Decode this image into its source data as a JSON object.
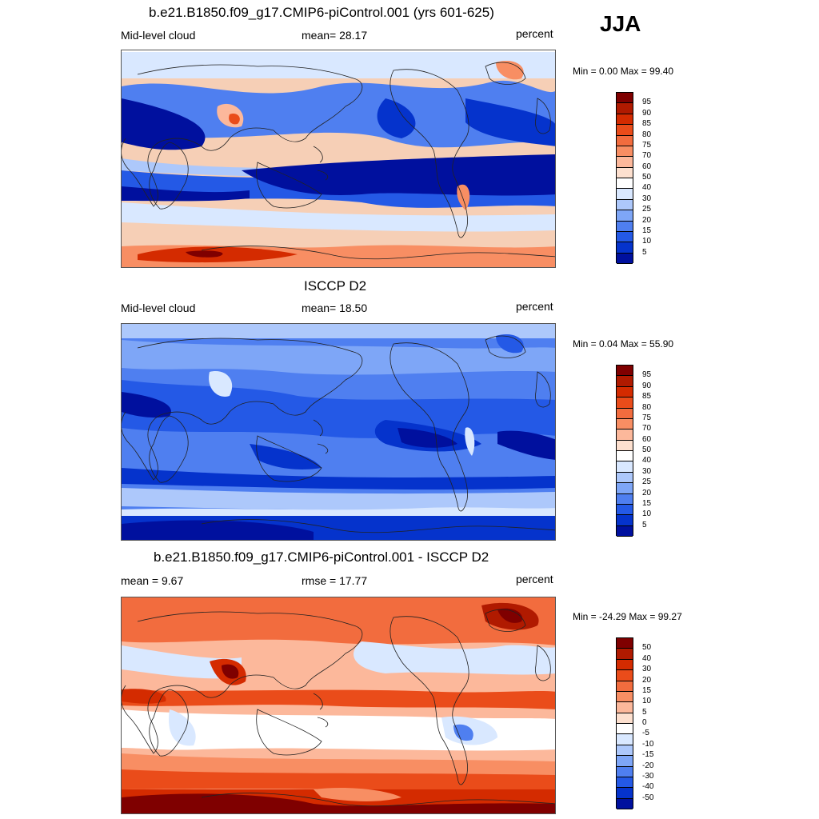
{
  "season": "JJA",
  "panels": [
    {
      "title": "b.e21.B1850.f09_g17.CMIP6-piControl.001 (yrs 601-625)",
      "left_label": "Mid-level cloud",
      "center_label": "mean=  28.17",
      "right_label": "percent",
      "minmax": "Min =   0.00 Max =  99.40",
      "colorbar": {
        "levels": [
          "95",
          "90",
          "85",
          "80",
          "75",
          "70",
          "60",
          "50",
          "40",
          "30",
          "25",
          "20",
          "15",
          "10",
          "5"
        ],
        "colors": [
          "#7f0000",
          "#b01a00",
          "#d42b00",
          "#ea4c1a",
          "#f26c3e",
          "#f88e63",
          "#fcb89b",
          "#fde0cf",
          "#ffffff",
          "#d9e8ff",
          "#adc8fb",
          "#7ea6f7",
          "#4f7ff0",
          "#2459e6",
          "#0533cc",
          "#00109e"
        ]
      }
    },
    {
      "title": "ISCCP D2",
      "left_label": "Mid-level cloud",
      "center_label": "mean=  18.50",
      "right_label": "percent",
      "minmax": "Min =   0.04 Max =  55.90",
      "colorbar": {
        "levels": [
          "95",
          "90",
          "85",
          "80",
          "75",
          "70",
          "60",
          "50",
          "40",
          "30",
          "25",
          "20",
          "15",
          "10",
          "5"
        ],
        "colors": [
          "#7f0000",
          "#b01a00",
          "#d42b00",
          "#ea4c1a",
          "#f26c3e",
          "#f88e63",
          "#fcb89b",
          "#fde0cf",
          "#ffffff",
          "#d9e8ff",
          "#adc8fb",
          "#7ea6f7",
          "#4f7ff0",
          "#2459e6",
          "#0533cc",
          "#00109e"
        ]
      }
    },
    {
      "title": "b.e21.B1850.f09_g17.CMIP6-piControl.001 - ISCCP D2",
      "left_label": "mean =   9.67",
      "center_label": "rmse =  17.77",
      "right_label": "percent",
      "minmax": "Min = -24.29 Max =  99.27",
      "colorbar": {
        "levels": [
          "50",
          "40",
          "30",
          "20",
          "15",
          "10",
          "5",
          "0",
          "-5",
          "-10",
          "-15",
          "-20",
          "-30",
          "-40",
          "-50"
        ],
        "colors": [
          "#7f0000",
          "#b01a00",
          "#d42b00",
          "#ea4c1a",
          "#f26c3e",
          "#f88e63",
          "#fcb89b",
          "#fde0cf",
          "#ffffff",
          "#d9e8ff",
          "#adc8fb",
          "#7ea6f7",
          "#4f7ff0",
          "#2459e6",
          "#0533cc",
          "#00109e"
        ]
      }
    }
  ]
}
